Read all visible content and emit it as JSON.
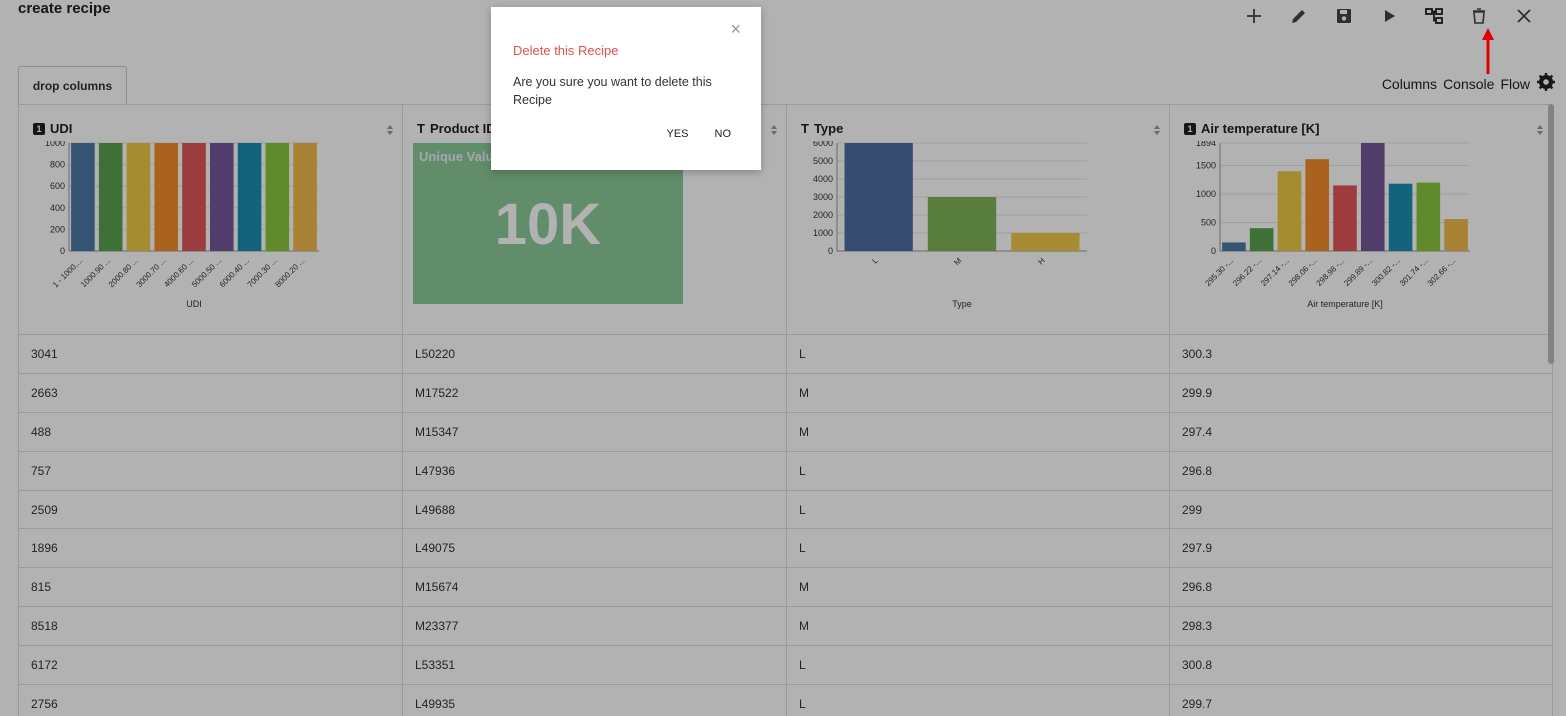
{
  "page_title": "create recipe",
  "toolbar": {
    "icons": [
      "plus-icon",
      "pencil-icon",
      "save-icon",
      "play-icon",
      "flow-tree-icon",
      "trash-icon",
      "close-icon"
    ]
  },
  "tab": {
    "label": "drop columns"
  },
  "right_links": {
    "columns": "Columns",
    "console": "Console",
    "flow": "Flow"
  },
  "columns": [
    {
      "name": "UDI",
      "type_badge": "1"
    },
    {
      "name": "Product ID",
      "type_badge": "T"
    },
    {
      "name": "Type",
      "type_badge": "T"
    },
    {
      "name": "Air temperature [K]",
      "type_badge": "1"
    }
  ],
  "unique_card": {
    "label": "Unique Values",
    "value": "10K"
  },
  "chart_data": [
    {
      "type": "bar",
      "xlabel": "UDI",
      "categories": [
        "1 - 1000....",
        "1000.90 ...",
        "2000.80 ...",
        "3000.70 ...",
        "4000.60 ...",
        "5000.50 ...",
        "6000.40 ...",
        "7000.30 ...",
        "8000.20 ..."
      ],
      "values": [
        1000,
        1000,
        1000,
        1000,
        1000,
        1000,
        1000,
        1000,
        1000
      ],
      "yticks": [
        "0",
        "200",
        "400",
        "600",
        "800",
        "1000"
      ],
      "ylim": [
        0,
        1000
      ]
    },
    {
      "type": "bar",
      "xlabel": "Type",
      "categories": [
        "L",
        "M",
        "H"
      ],
      "values": [
        6000,
        2997,
        1003
      ],
      "yticks": [
        "0",
        "1000",
        "2000",
        "3000",
        "4000",
        "5000",
        "6000"
      ],
      "ylim": [
        0,
        6000
      ]
    },
    {
      "type": "bar",
      "xlabel": "Air temperature [K]",
      "categories": [
        "295.30 -...",
        "296.22 -...",
        "297.14 -...",
        "298.06 -...",
        "298.98 -...",
        "299.89 -...",
        "300.82 -...",
        "301.74 -...",
        "302.66 -..."
      ],
      "values": [
        150,
        400,
        1400,
        1610,
        1150,
        1894,
        1180,
        1200,
        560
      ],
      "yticks": [
        "0",
        "500",
        "1000",
        "1500",
        "1894"
      ],
      "ylim": [
        0,
        1894
      ]
    }
  ],
  "rows": [
    [
      "3041",
      "L50220",
      "L",
      "300.3"
    ],
    [
      "2663",
      "M17522",
      "M",
      "299.9"
    ],
    [
      "488",
      "M15347",
      "M",
      "297.4"
    ],
    [
      "757",
      "L47936",
      "L",
      "296.8"
    ],
    [
      "2509",
      "L49688",
      "L",
      "299"
    ],
    [
      "1896",
      "L49075",
      "L",
      "297.9"
    ],
    [
      "815",
      "M15674",
      "M",
      "296.8"
    ],
    [
      "8518",
      "M23377",
      "M",
      "298.3"
    ],
    [
      "6172",
      "L53351",
      "L",
      "300.8"
    ],
    [
      "2756",
      "L49935",
      "L",
      "299.7"
    ]
  ],
  "modal": {
    "close": "×",
    "title": "Delete this Recipe",
    "body": "Are you sure you want to delete this Recipe",
    "yes": "YES",
    "no": "NO"
  },
  "colors": {
    "bars": [
      "#4e79a7",
      "#59a14f",
      "#edc948",
      "#f28e2b",
      "#e15759",
      "#76579b",
      "#1b8fb0",
      "#8cc63f",
      "#f1b94d"
    ],
    "type_bars": [
      "#4e6fa3",
      "#7fb356",
      "#f1c94d"
    ],
    "modal_title": "#d9534f",
    "arrow": "#e00000"
  }
}
